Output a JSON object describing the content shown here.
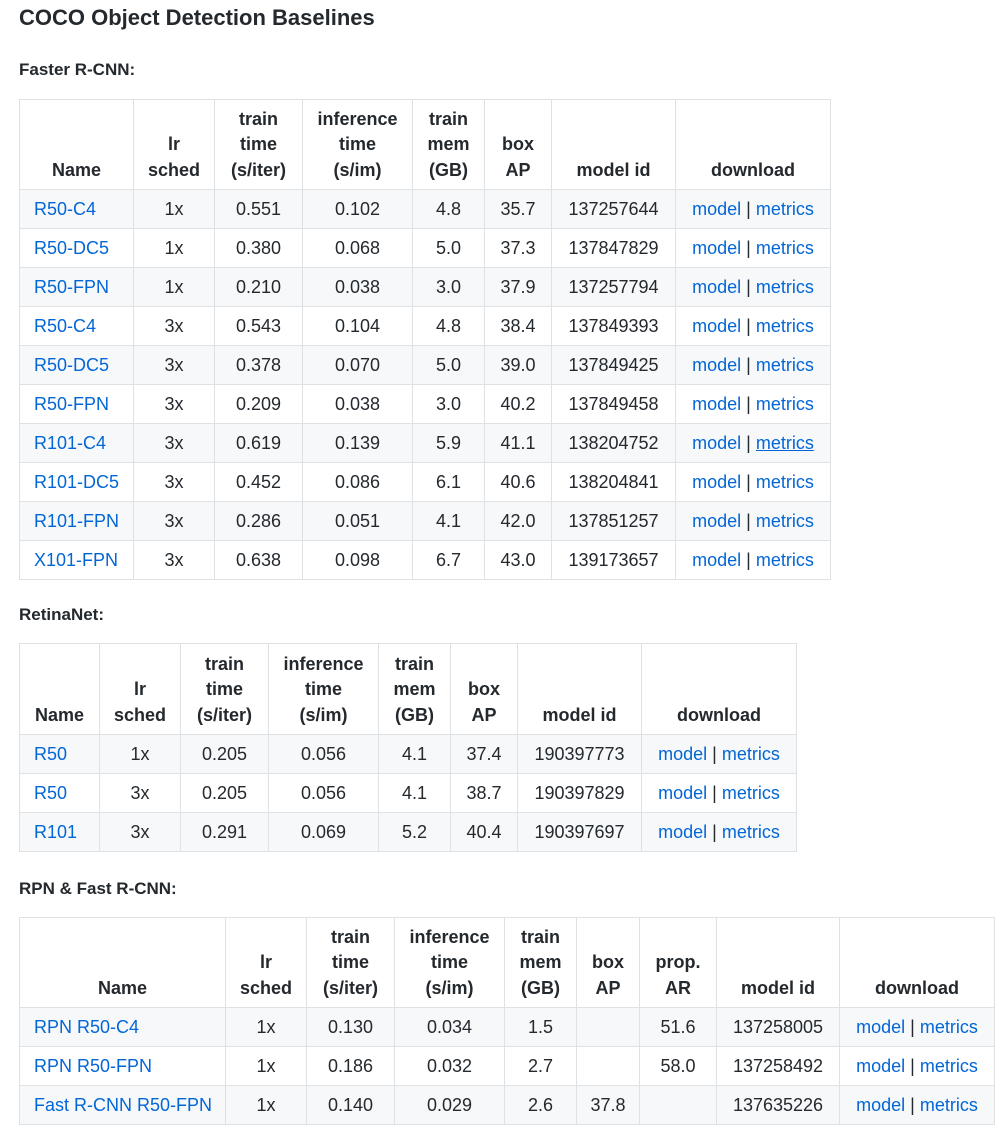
{
  "page_title": "COCO Object Detection Baselines",
  "sections": [
    {
      "title": "Faster R-CNN:",
      "headers": [
        [
          "Name"
        ],
        [
          "lr",
          "sched"
        ],
        [
          "train",
          "time",
          "(s/iter)"
        ],
        [
          "inference",
          "time",
          "(s/im)"
        ],
        [
          "train",
          "mem",
          "(GB)"
        ],
        [
          "box",
          "AP"
        ],
        [
          "model id"
        ],
        [
          "download"
        ]
      ],
      "rows": [
        {
          "name": "R50-C4",
          "lr_sched": "1x",
          "train_time": "0.551",
          "inference_time": "0.102",
          "train_mem": "4.8",
          "box_ap": "35.7",
          "model_id": "137257644",
          "model": "model",
          "sep": "|",
          "metrics": "metrics"
        },
        {
          "name": "R50-DC5",
          "lr_sched": "1x",
          "train_time": "0.380",
          "inference_time": "0.068",
          "train_mem": "5.0",
          "box_ap": "37.3",
          "model_id": "137847829",
          "model": "model",
          "sep": "|",
          "metrics": "metrics"
        },
        {
          "name": "R50-FPN",
          "lr_sched": "1x",
          "train_time": "0.210",
          "inference_time": "0.038",
          "train_mem": "3.0",
          "box_ap": "37.9",
          "model_id": "137257794",
          "model": "model",
          "sep": "|",
          "metrics": "metrics"
        },
        {
          "name": "R50-C4",
          "lr_sched": "3x",
          "train_time": "0.543",
          "inference_time": "0.104",
          "train_mem": "4.8",
          "box_ap": "38.4",
          "model_id": "137849393",
          "model": "model",
          "sep": "|",
          "metrics": "metrics"
        },
        {
          "name": "R50-DC5",
          "lr_sched": "3x",
          "train_time": "0.378",
          "inference_time": "0.070",
          "train_mem": "5.0",
          "box_ap": "39.0",
          "model_id": "137849425",
          "model": "model",
          "sep": "|",
          "metrics": "metrics"
        },
        {
          "name": "R50-FPN",
          "lr_sched": "3x",
          "train_time": "0.209",
          "inference_time": "0.038",
          "train_mem": "3.0",
          "box_ap": "40.2",
          "model_id": "137849458",
          "model": "model",
          "sep": "|",
          "metrics": "metrics"
        },
        {
          "name": "R101-C4",
          "lr_sched": "3x",
          "train_time": "0.619",
          "inference_time": "0.139",
          "train_mem": "5.9",
          "box_ap": "41.1",
          "model_id": "138204752",
          "model": "model",
          "sep": "|",
          "metrics": "metrics",
          "metrics_hovered": true
        },
        {
          "name": "R101-DC5",
          "lr_sched": "3x",
          "train_time": "0.452",
          "inference_time": "0.086",
          "train_mem": "6.1",
          "box_ap": "40.6",
          "model_id": "138204841",
          "model": "model",
          "sep": "|",
          "metrics": "metrics"
        },
        {
          "name": "R101-FPN",
          "lr_sched": "3x",
          "train_time": "0.286",
          "inference_time": "0.051",
          "train_mem": "4.1",
          "box_ap": "42.0",
          "model_id": "137851257",
          "model": "model",
          "sep": "|",
          "metrics": "metrics"
        },
        {
          "name": "X101-FPN",
          "lr_sched": "3x",
          "train_time": "0.638",
          "inference_time": "0.098",
          "train_mem": "6.7",
          "box_ap": "43.0",
          "model_id": "139173657",
          "model": "model",
          "sep": "|",
          "metrics": "metrics"
        }
      ]
    },
    {
      "title": "RetinaNet:",
      "headers": [
        [
          "Name"
        ],
        [
          "lr",
          "sched"
        ],
        [
          "train",
          "time",
          "(s/iter)"
        ],
        [
          "inference",
          "time",
          "(s/im)"
        ],
        [
          "train",
          "mem",
          "(GB)"
        ],
        [
          "box",
          "AP"
        ],
        [
          "model id"
        ],
        [
          "download"
        ]
      ],
      "rows": [
        {
          "name": "R50",
          "lr_sched": "1x",
          "train_time": "0.205",
          "inference_time": "0.056",
          "train_mem": "4.1",
          "box_ap": "37.4",
          "model_id": "190397773",
          "model": "model",
          "sep": "|",
          "metrics": "metrics"
        },
        {
          "name": "R50",
          "lr_sched": "3x",
          "train_time": "0.205",
          "inference_time": "0.056",
          "train_mem": "4.1",
          "box_ap": "38.7",
          "model_id": "190397829",
          "model": "model",
          "sep": "|",
          "metrics": "metrics"
        },
        {
          "name": "R101",
          "lr_sched": "3x",
          "train_time": "0.291",
          "inference_time": "0.069",
          "train_mem": "5.2",
          "box_ap": "40.4",
          "model_id": "190397697",
          "model": "model",
          "sep": "|",
          "metrics": "metrics"
        }
      ]
    },
    {
      "title": "RPN & Fast R-CNN:",
      "headers": [
        [
          "Name"
        ],
        [
          "lr",
          "sched"
        ],
        [
          "train",
          "time",
          "(s/iter)"
        ],
        [
          "inference",
          "time",
          "(s/im)"
        ],
        [
          "train",
          "mem",
          "(GB)"
        ],
        [
          "box",
          "AP"
        ],
        [
          "prop.",
          "AR"
        ],
        [
          "model id"
        ],
        [
          "download"
        ]
      ],
      "rows": [
        {
          "name": "RPN R50-C4",
          "lr_sched": "1x",
          "train_time": "0.130",
          "inference_time": "0.034",
          "train_mem": "1.5",
          "box_ap": "",
          "prop_ar": "51.6",
          "model_id": "137258005",
          "model": "model",
          "sep": "|",
          "metrics": "metrics"
        },
        {
          "name": "RPN R50-FPN",
          "lr_sched": "1x",
          "train_time": "0.186",
          "inference_time": "0.032",
          "train_mem": "2.7",
          "box_ap": "",
          "prop_ar": "58.0",
          "model_id": "137258492",
          "model": "model",
          "sep": "|",
          "metrics": "metrics"
        },
        {
          "name": "Fast R-CNN R50-FPN",
          "lr_sched": "1x",
          "train_time": "0.140",
          "inference_time": "0.029",
          "train_mem": "2.6",
          "box_ap": "37.8",
          "prop_ar": "",
          "model_id": "137635226",
          "model": "model",
          "sep": "|",
          "metrics": "metrics"
        }
      ]
    }
  ]
}
